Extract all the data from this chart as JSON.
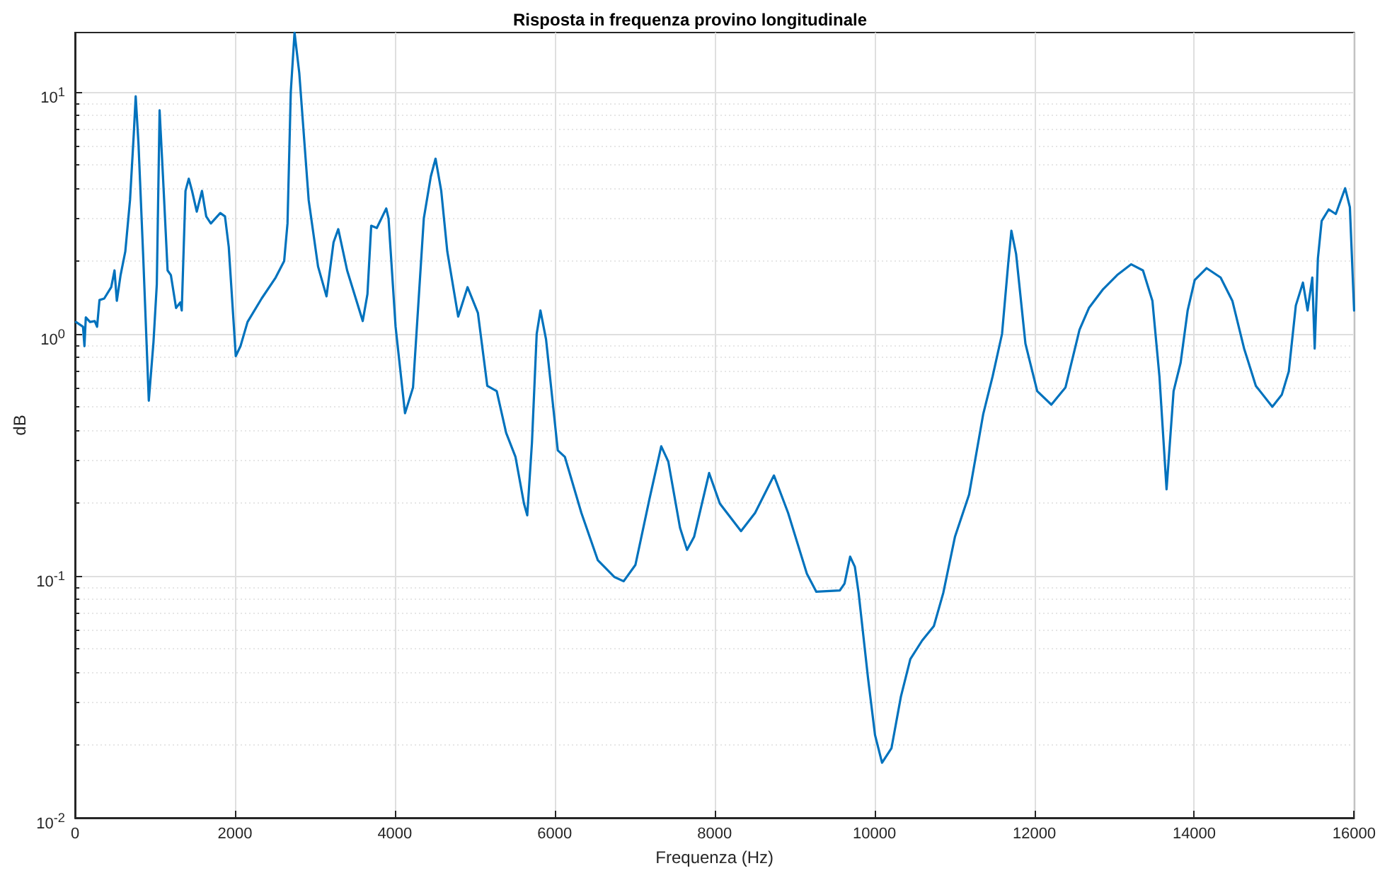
{
  "chart_data": {
    "type": "line",
    "title": "Risposta in frequenza provino longitudinale",
    "xlabel": "Frequenza (Hz)",
    "ylabel": "dB",
    "log": "y",
    "grid": true,
    "marker": "none",
    "line_style": "solid",
    "xlim": [
      0,
      16000
    ],
    "xticks": [
      0,
      2000,
      4000,
      6000,
      8000,
      10000,
      12000,
      14000,
      16000
    ],
    "ylim": [
      0.01,
      17.6
    ],
    "yticks": [
      {
        "value": 0.01,
        "label": "10$^{-2}$"
      },
      {
        "value": 0.02,
        "label": null
      },
      {
        "value": 0.03,
        "label": null
      },
      {
        "value": 0.04,
        "label": null
      },
      {
        "value": 0.05,
        "label": null
      },
      {
        "value": 0.06,
        "label": null
      },
      {
        "value": 0.07,
        "label": null
      },
      {
        "value": 0.08,
        "label": null
      },
      {
        "value": 0.09,
        "label": null
      },
      {
        "value": 0.1,
        "label": "10$^{-1}$"
      },
      {
        "value": 0.2,
        "label": null
      },
      {
        "value": 0.3,
        "label": null
      },
      {
        "value": 0.4,
        "label": null
      },
      {
        "value": 0.5,
        "label": null
      },
      {
        "value": 0.6,
        "label": null
      },
      {
        "value": 0.7,
        "label": null
      },
      {
        "value": 0.8,
        "label": null
      },
      {
        "value": 0.9,
        "label": null
      },
      {
        "value": 1,
        "label": "10$^{0}$"
      },
      {
        "value": 2,
        "label": null
      },
      {
        "value": 3,
        "label": null
      },
      {
        "value": 4,
        "label": null
      },
      {
        "value": 5,
        "label": null
      },
      {
        "value": 6,
        "label": null
      },
      {
        "value": 7,
        "label": null
      },
      {
        "value": 8,
        "label": null
      },
      {
        "value": 9,
        "label": null
      },
      {
        "value": 10,
        "label": "10$^{1}$"
      }
    ],
    "series": [
      {
        "color": "#0072bd",
        "x": [
          12,
          100,
          118,
          135,
          188,
          247,
          276,
          306,
          365,
          453,
          494,
          523,
          570,
          629,
          688,
          735,
          759,
          794,
          853,
          923,
          982,
          1023,
          1058,
          1100,
          1158,
          1199,
          1264,
          1317,
          1335,
          1382,
          1423,
          1464,
          1523,
          1588,
          1641,
          1699,
          1817,
          1876,
          1923,
          2011,
          2070,
          2158,
          2334,
          2510,
          2616,
          2658,
          2699,
          2746,
          2805,
          2923,
          3040,
          3146,
          3234,
          3293,
          3404,
          3599,
          3658,
          3705,
          3775,
          3893,
          3922,
          4010,
          4128,
          4228,
          4363,
          4451,
          4510,
          4581,
          4657,
          4793,
          4910,
          5040,
          5157,
          5275,
          5393,
          5510,
          5616,
          5657,
          5716,
          5775,
          5822,
          5892,
          6039,
          6128,
          6334,
          6540,
          6745,
          6863,
          7010,
          7186,
          7333,
          7421,
          7568,
          7656,
          7744,
          7932,
          8066,
          8331,
          8507,
          8743,
          8920,
          9155,
          9273,
          9567,
          9626,
          9696,
          9755,
          9802,
          9919,
          10007,
          10095,
          10213,
          10331,
          10449,
          10596,
          10743,
          10861,
          11007,
          11184,
          11360,
          11478,
          11596,
          11673,
          11713,
          11772,
          11889,
          12036,
          12213,
          12389,
          12565,
          12683,
          12860,
          13036,
          13212,
          13359,
          13477,
          13565,
          13654,
          13742,
          13830,
          13918,
          14006,
          14154,
          14330,
          14477,
          14624,
          14771,
          14977,
          15095,
          15183,
          15271,
          15360,
          15418,
          15477,
          15507,
          15547,
          15594,
          15683,
          15771,
          15888,
          15947,
          16000
        ],
        "values": [
          1.12,
          1.07,
          0.89,
          1.17,
          1.12,
          1.13,
          1.07,
          1.38,
          1.4,
          1.56,
          1.83,
          1.37,
          1.75,
          2.19,
          3.57,
          6.7,
          9.6,
          6.1,
          2.09,
          0.53,
          0.93,
          1.6,
          8.4,
          4.5,
          1.83,
          1.75,
          1.28,
          1.35,
          1.25,
          3.9,
          4.38,
          3.9,
          3.2,
          3.9,
          3.06,
          2.86,
          3.16,
          3.06,
          2.29,
          0.81,
          0.89,
          1.12,
          1.4,
          1.71,
          2.0,
          2.86,
          10,
          17.6,
          12,
          3.57,
          1.9,
          1.43,
          2.39,
          2.71,
          1.83,
          1.13,
          1.46,
          2.8,
          2.74,
          3.3,
          3.0,
          1.07,
          0.47,
          0.6,
          3.0,
          4.48,
          5.3,
          3.9,
          2.19,
          1.18,
          1.56,
          1.22,
          0.61,
          0.58,
          0.39,
          0.31,
          0.199,
          0.178,
          0.356,
          1.0,
          1.25,
          0.95,
          0.33,
          0.31,
          0.182,
          0.116,
          0.099,
          0.095,
          0.111,
          0.208,
          0.343,
          0.297,
          0.158,
          0.128,
          0.145,
          0.266,
          0.199,
          0.153,
          0.182,
          0.26,
          0.182,
          0.102,
          0.086,
          0.087,
          0.093,
          0.12,
          0.109,
          0.085,
          0.038,
          0.022,
          0.0169,
          0.0194,
          0.0317,
          0.0453,
          0.054,
          0.062,
          0.085,
          0.145,
          0.217,
          0.465,
          0.667,
          1.0,
          1.95,
          2.67,
          2.14,
          0.91,
          0.58,
          0.51,
          0.6,
          1.04,
          1.28,
          1.53,
          1.75,
          1.94,
          1.83,
          1.37,
          0.667,
          0.228,
          0.58,
          0.76,
          1.25,
          1.67,
          1.87,
          1.71,
          1.37,
          0.87,
          0.61,
          0.5,
          0.56,
          0.7,
          1.31,
          1.63,
          1.25,
          1.71,
          0.87,
          2.05,
          2.93,
          3.27,
          3.13,
          4.0,
          3.34,
          1.25
        ]
      }
    ]
  }
}
